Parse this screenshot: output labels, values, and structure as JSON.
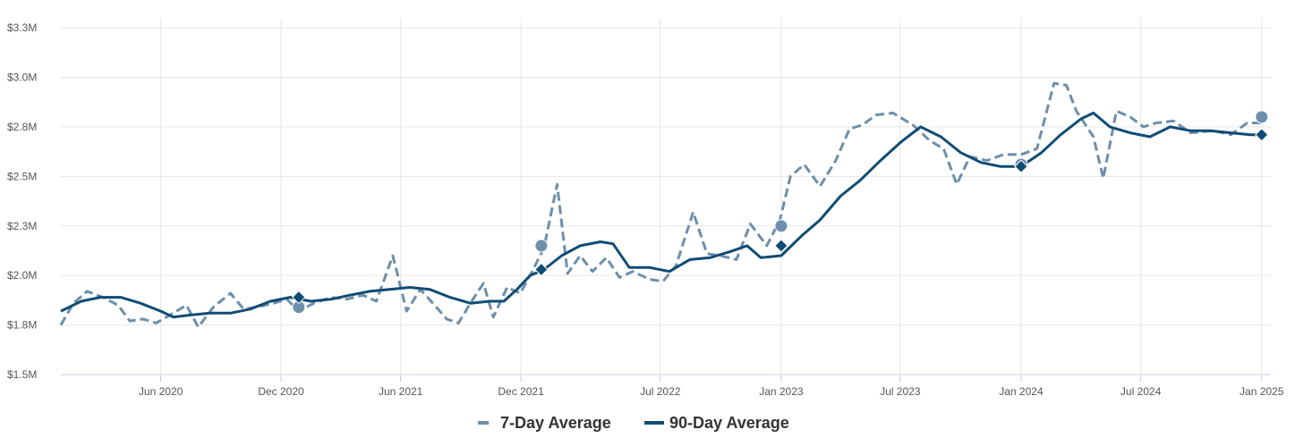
{
  "colors": {
    "series_7day": "#6d8fab",
    "series_90day": "#0f4c75",
    "grid": "#e6e6e6",
    "axis": "#c0d0e0",
    "text": "#555555",
    "legend_text": "#333333"
  },
  "legend": {
    "items": [
      {
        "label": "7-Day Average",
        "style": "dashed",
        "color": "#6d8fab"
      },
      {
        "label": "90-Day Average",
        "style": "solid",
        "color": "#0f4c75"
      }
    ]
  },
  "chart_data": {
    "type": "line",
    "title": "",
    "xlabel": "",
    "ylabel": "",
    "xlim": [
      "2020-01-01",
      "2025-01-15"
    ],
    "ylim": [
      1.5,
      3.3
    ],
    "grid": true,
    "legend_position": "bottom-center",
    "y_ticks": [
      {
        "value": 1.5,
        "label": "$1.5M"
      },
      {
        "value": 1.75,
        "label": "$1.8M"
      },
      {
        "value": 2.0,
        "label": "$2.0M"
      },
      {
        "value": 2.25,
        "label": "$2.3M"
      },
      {
        "value": 2.5,
        "label": "$2.5M"
      },
      {
        "value": 2.75,
        "label": "$2.8M"
      },
      {
        "value": 3.0,
        "label": "$3.0M"
      },
      {
        "value": 3.25,
        "label": "$3.3M"
      }
    ],
    "x_ticks": [
      {
        "date": "2020-06-01",
        "label": "Jun 2020"
      },
      {
        "date": "2020-12-01",
        "label": "Dec 2020"
      },
      {
        "date": "2021-06-01",
        "label": "Jun 2021"
      },
      {
        "date": "2021-12-01",
        "label": "Dec 2021"
      },
      {
        "date": "2022-07-01",
        "label": "Jul 2022"
      },
      {
        "date": "2023-01-01",
        "label": "Jan 2023"
      },
      {
        "date": "2023-07-01",
        "label": "Jul 2023"
      },
      {
        "date": "2024-01-01",
        "label": "Jan 2024"
      },
      {
        "date": "2024-07-01",
        "label": "Jul 2024"
      },
      {
        "date": "2025-01-01",
        "label": "Jan 2025"
      }
    ],
    "series": [
      {
        "name": "7-Day Average",
        "style": "dashed",
        "points": [
          [
            "2020-01-01",
            1.75
          ],
          [
            "2020-01-20",
            1.86
          ],
          [
            "2020-02-10",
            1.92
          ],
          [
            "2020-03-05",
            1.89
          ],
          [
            "2020-03-28",
            1.85
          ],
          [
            "2020-04-15",
            1.77
          ],
          [
            "2020-05-05",
            1.78
          ],
          [
            "2020-05-25",
            1.76
          ],
          [
            "2020-06-20",
            1.81
          ],
          [
            "2020-07-10",
            1.85
          ],
          [
            "2020-07-28",
            1.74
          ],
          [
            "2020-08-20",
            1.84
          ],
          [
            "2020-09-15",
            1.91
          ],
          [
            "2020-10-05",
            1.83
          ],
          [
            "2020-10-25",
            1.84
          ],
          [
            "2020-11-20",
            1.86
          ],
          [
            "2020-12-10",
            1.88
          ],
          [
            "2020-12-28",
            1.82
          ],
          [
            "2021-01-20",
            1.86
          ],
          [
            "2021-02-15",
            1.89
          ],
          [
            "2021-03-10",
            1.88
          ],
          [
            "2021-04-05",
            1.9
          ],
          [
            "2021-04-25",
            1.87
          ],
          [
            "2021-05-20",
            2.1
          ],
          [
            "2021-06-10",
            1.82
          ],
          [
            "2021-07-01",
            1.93
          ],
          [
            "2021-07-20",
            1.86
          ],
          [
            "2021-08-10",
            1.78
          ],
          [
            "2021-08-28",
            1.76
          ],
          [
            "2021-09-15",
            1.86
          ],
          [
            "2021-10-05",
            1.96
          ],
          [
            "2021-10-20",
            1.79
          ],
          [
            "2021-11-10",
            1.94
          ],
          [
            "2021-11-30",
            1.91
          ],
          [
            "2021-12-18",
            2.02
          ],
          [
            "2022-01-05",
            2.14
          ],
          [
            "2022-01-25",
            2.46
          ],
          [
            "2022-02-10",
            2.01
          ],
          [
            "2022-03-01",
            2.1
          ],
          [
            "2022-03-20",
            2.02
          ],
          [
            "2022-04-10",
            2.09
          ],
          [
            "2022-04-30",
            1.99
          ],
          [
            "2022-05-20",
            2.02
          ],
          [
            "2022-06-15",
            1.98
          ],
          [
            "2022-07-05",
            1.97
          ],
          [
            "2022-07-25",
            2.05
          ],
          [
            "2022-08-20",
            2.32
          ],
          [
            "2022-09-10",
            2.11
          ],
          [
            "2022-09-30",
            2.1
          ],
          [
            "2022-10-25",
            2.08
          ],
          [
            "2022-11-15",
            2.26
          ],
          [
            "2022-12-10",
            2.15
          ],
          [
            "2022-12-30",
            2.28
          ],
          [
            "2023-01-15",
            2.5
          ],
          [
            "2023-02-05",
            2.56
          ],
          [
            "2023-03-01",
            2.45
          ],
          [
            "2023-03-25",
            2.58
          ],
          [
            "2023-04-15",
            2.74
          ],
          [
            "2023-05-05",
            2.76
          ],
          [
            "2023-05-25",
            2.81
          ],
          [
            "2023-06-20",
            2.82
          ],
          [
            "2023-07-20",
            2.76
          ],
          [
            "2023-08-15",
            2.68
          ],
          [
            "2023-09-05",
            2.64
          ],
          [
            "2023-09-25",
            2.46
          ],
          [
            "2023-10-15",
            2.6
          ],
          [
            "2023-11-10",
            2.58
          ],
          [
            "2023-12-05",
            2.61
          ],
          [
            "2024-01-01",
            2.61
          ],
          [
            "2024-01-25",
            2.64
          ],
          [
            "2024-02-20",
            2.97
          ],
          [
            "2024-03-10",
            2.96
          ],
          [
            "2024-03-25",
            2.83
          ],
          [
            "2024-04-20",
            2.7
          ],
          [
            "2024-05-05",
            2.49
          ],
          [
            "2024-05-25",
            2.83
          ],
          [
            "2024-06-15",
            2.8
          ],
          [
            "2024-07-05",
            2.75
          ],
          [
            "2024-07-25",
            2.77
          ],
          [
            "2024-08-20",
            2.78
          ],
          [
            "2024-09-15",
            2.72
          ],
          [
            "2024-10-20",
            2.73
          ],
          [
            "2024-11-15",
            2.71
          ],
          [
            "2024-12-10",
            2.77
          ],
          [
            "2025-01-05",
            2.77
          ]
        ]
      },
      {
        "name": "90-Day Average",
        "style": "solid",
        "points": [
          [
            "2020-01-01",
            1.82
          ],
          [
            "2020-02-01",
            1.87
          ],
          [
            "2020-03-01",
            1.89
          ],
          [
            "2020-04-01",
            1.89
          ],
          [
            "2020-05-01",
            1.86
          ],
          [
            "2020-06-01",
            1.82
          ],
          [
            "2020-06-20",
            1.79
          ],
          [
            "2020-07-15",
            1.8
          ],
          [
            "2020-08-15",
            1.81
          ],
          [
            "2020-09-15",
            1.81
          ],
          [
            "2020-10-15",
            1.83
          ],
          [
            "2020-11-15",
            1.87
          ],
          [
            "2020-12-15",
            1.89
          ],
          [
            "2021-01-15",
            1.87
          ],
          [
            "2021-02-15",
            1.88
          ],
          [
            "2021-03-15",
            1.9
          ],
          [
            "2021-04-15",
            1.92
          ],
          [
            "2021-05-15",
            1.93
          ],
          [
            "2021-06-15",
            1.94
          ],
          [
            "2021-07-15",
            1.93
          ],
          [
            "2021-08-15",
            1.89
          ],
          [
            "2021-09-15",
            1.86
          ],
          [
            "2021-10-15",
            1.87
          ],
          [
            "2021-11-05",
            1.87
          ],
          [
            "2021-11-25",
            1.93
          ],
          [
            "2021-12-15",
            2.0
          ],
          [
            "2022-01-05",
            2.03
          ],
          [
            "2022-02-01",
            2.1
          ],
          [
            "2022-03-01",
            2.15
          ],
          [
            "2022-04-01",
            2.17
          ],
          [
            "2022-04-20",
            2.16
          ],
          [
            "2022-05-15",
            2.04
          ],
          [
            "2022-06-15",
            2.04
          ],
          [
            "2022-07-15",
            2.02
          ],
          [
            "2022-08-15",
            2.08
          ],
          [
            "2022-09-15",
            2.09
          ],
          [
            "2022-10-15",
            2.12
          ],
          [
            "2022-11-10",
            2.15
          ],
          [
            "2022-12-01",
            2.09
          ],
          [
            "2023-01-01",
            2.1
          ],
          [
            "2023-02-01",
            2.2
          ],
          [
            "2023-03-01",
            2.28
          ],
          [
            "2023-04-01",
            2.4
          ],
          [
            "2023-05-01",
            2.48
          ],
          [
            "2023-06-01",
            2.58
          ],
          [
            "2023-07-01",
            2.67
          ],
          [
            "2023-08-01",
            2.75
          ],
          [
            "2023-09-01",
            2.7
          ],
          [
            "2023-10-01",
            2.62
          ],
          [
            "2023-11-01",
            2.57
          ],
          [
            "2023-12-01",
            2.55
          ],
          [
            "2024-01-01",
            2.55
          ],
          [
            "2024-02-01",
            2.62
          ],
          [
            "2024-03-01",
            2.71
          ],
          [
            "2024-04-01",
            2.79
          ],
          [
            "2024-04-20",
            2.82
          ],
          [
            "2024-05-15",
            2.75
          ],
          [
            "2024-06-15",
            2.72
          ],
          [
            "2024-07-15",
            2.7
          ],
          [
            "2024-08-15",
            2.75
          ],
          [
            "2024-09-15",
            2.73
          ],
          [
            "2024-10-15",
            2.73
          ],
          [
            "2024-11-15",
            2.72
          ],
          [
            "2024-12-15",
            2.71
          ],
          [
            "2025-01-05",
            2.71
          ]
        ]
      }
    ],
    "markers": [
      {
        "series": "7-Day Average",
        "shape": "circle",
        "x": "2020-12-28",
        "y": 1.84
      },
      {
        "series": "90-Day Average",
        "shape": "diamond",
        "x": "2020-12-28",
        "y": 1.89
      },
      {
        "series": "7-Day Average",
        "shape": "circle",
        "x": "2022-01-01",
        "y": 2.15
      },
      {
        "series": "90-Day Average",
        "shape": "diamond",
        "x": "2022-01-01",
        "y": 2.03
      },
      {
        "series": "7-Day Average",
        "shape": "circle",
        "x": "2023-01-01",
        "y": 2.25
      },
      {
        "series": "90-Day Average",
        "shape": "diamond",
        "x": "2023-01-01",
        "y": 2.15
      },
      {
        "series": "7-Day Average",
        "shape": "circle",
        "x": "2024-01-01",
        "y": 2.56
      },
      {
        "series": "90-Day Average",
        "shape": "diamond",
        "x": "2024-01-01",
        "y": 2.55
      },
      {
        "series": "7-Day Average",
        "shape": "circle",
        "x": "2025-01-01",
        "y": 2.8
      },
      {
        "series": "90-Day Average",
        "shape": "diamond",
        "x": "2025-01-01",
        "y": 2.71
      }
    ]
  }
}
